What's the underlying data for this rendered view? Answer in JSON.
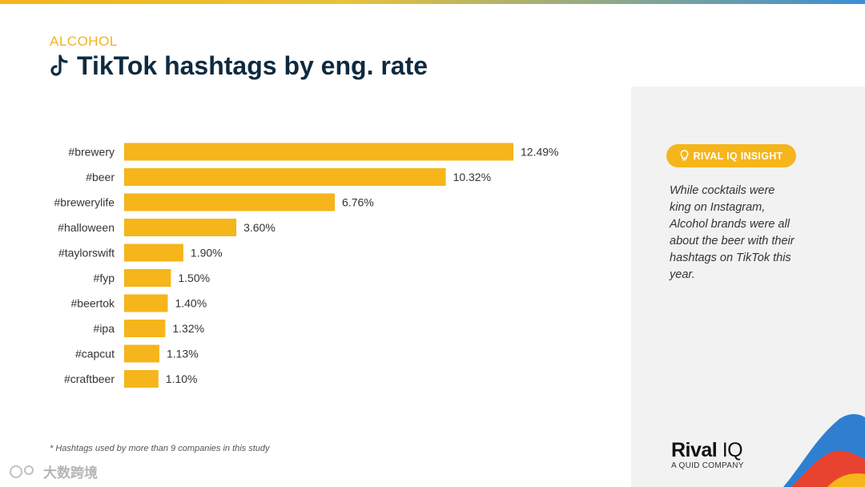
{
  "header": {
    "category": "ALCOHOL",
    "title": "TikTok hashtags by eng. rate"
  },
  "chart_data": {
    "type": "bar",
    "orientation": "horizontal",
    "categories": [
      "#brewery",
      "#beer",
      "#brewerylife",
      "#halloween",
      "#taylorswift",
      "#fyp",
      "#beertok",
      "#ipa",
      "#capcut",
      "#craftbeer"
    ],
    "values": [
      12.49,
      10.32,
      6.76,
      3.6,
      1.9,
      1.5,
      1.4,
      1.32,
      1.13,
      1.1
    ],
    "value_labels": [
      "12.49%",
      "10.32%",
      "6.76%",
      "3.60%",
      "1.90%",
      "1.50%",
      "1.40%",
      "1.32%",
      "1.13%",
      "1.10%"
    ],
    "bar_color": "#f5b51b",
    "xlim": [
      0,
      12.49
    ],
    "grid": false,
    "legend": "none"
  },
  "footnote": "* Hashtags used by more than 9 companies in this study",
  "insight": {
    "label": "RIVAL IQ INSIGHT",
    "text": "While cocktails were king on Instagram, Alcohol brands were all about the beer with their hashtags on TikTok this year."
  },
  "logo": {
    "brand": "Rival",
    "brand_suffix": "IQ",
    "tagline": "A QUID COMPANY"
  },
  "watermark": "大数跨境",
  "colors": {
    "accent": "#f5b51b",
    "title": "#0f2a3f"
  }
}
